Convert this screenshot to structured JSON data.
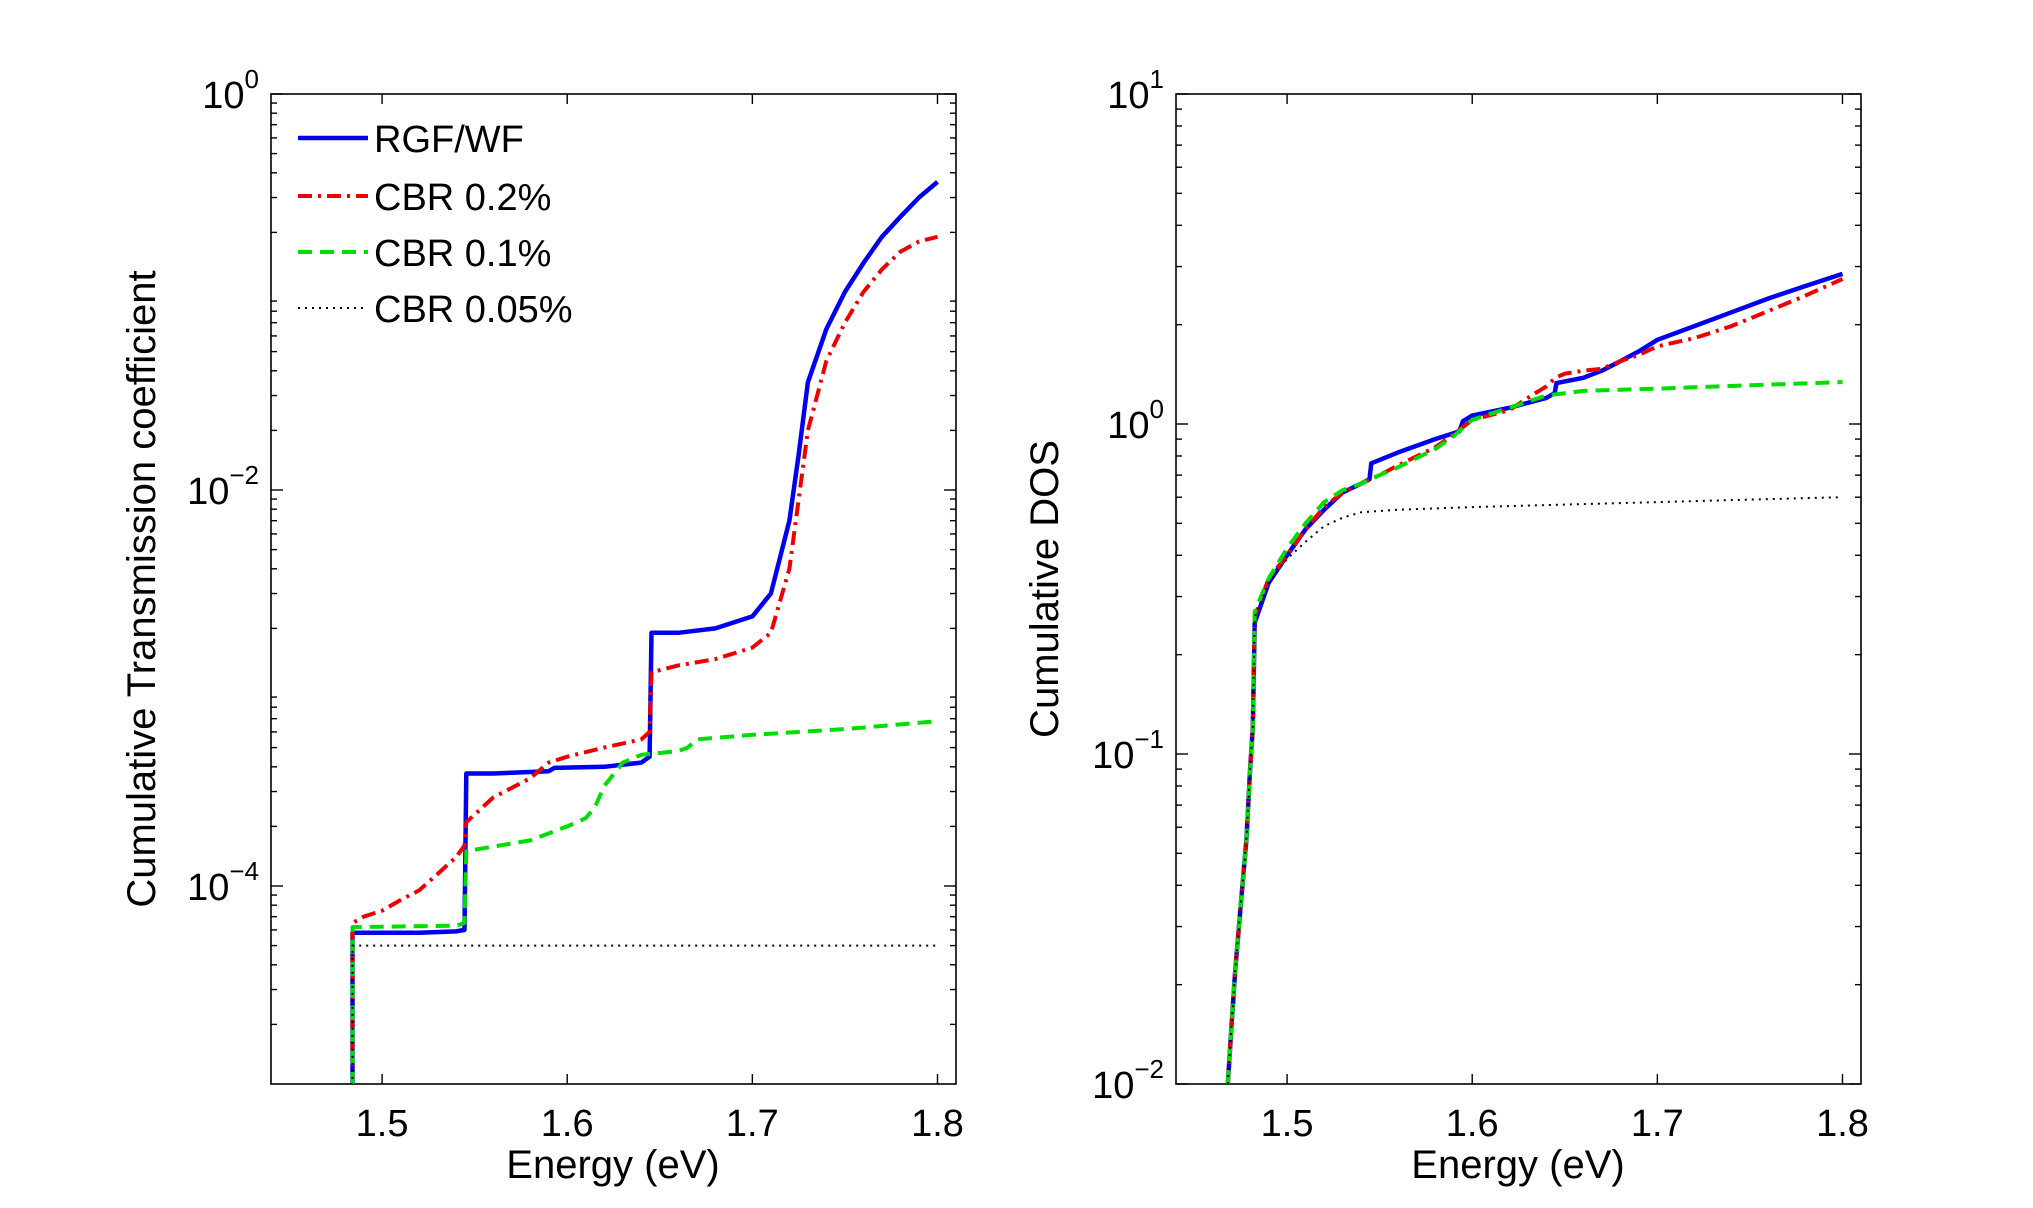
{
  "chart_data": [
    {
      "type": "line",
      "xlabel": "Energy (eV)",
      "ylabel": "Cumulative Transmission coefficient",
      "xlim": [
        1.44,
        1.81
      ],
      "ylim": [
        1e-05,
        1
      ],
      "yscale": "log",
      "xticks": [
        "1.5",
        "1.6",
        "1.7",
        "1.8"
      ],
      "xtick_values": [
        1.5,
        1.6,
        1.7,
        1.8
      ],
      "yticks": [
        {
          "base": "10",
          "exp": "0",
          "value": 1
        },
        {
          "base": "10",
          "exp": "−2",
          "value": 0.01
        },
        {
          "base": "10",
          "exp": "−4",
          "value": 0.0001
        }
      ],
      "legend": {
        "placement": "top-left"
      },
      "series": [
        {
          "name": "RGF/WF",
          "color": "#0000ee",
          "style": "solid",
          "x": [
            1.483,
            1.484,
            1.484,
            1.52,
            1.54,
            1.5445,
            1.5455,
            1.56,
            1.59,
            1.593,
            1.62,
            1.64,
            1.6445,
            1.6455,
            1.66,
            1.68,
            1.7,
            1.71,
            1.72,
            1.725,
            1.73,
            1.74,
            1.75,
            1.76,
            1.77,
            1.78,
            1.79,
            1.8
          ],
          "y": [
            1e-05,
            1e-05,
            5.8e-05,
            5.8e-05,
            5.9e-05,
            6e-05,
            0.00037,
            0.00037,
            0.00038,
            0.000395,
            0.0004,
            0.00042,
            0.00045,
            0.0019,
            0.0019,
            0.002,
            0.0023,
            0.003,
            0.007,
            0.015,
            0.035,
            0.065,
            0.1,
            0.14,
            0.19,
            0.24,
            0.3,
            0.36
          ]
        },
        {
          "name": "CBR 0.2%",
          "color": "#ee0000",
          "style": "dashdot",
          "x": [
            1.483,
            1.484,
            1.484,
            1.49,
            1.5,
            1.51,
            1.52,
            1.53,
            1.54,
            1.5445,
            1.5455,
            1.56,
            1.58,
            1.59,
            1.6,
            1.62,
            1.64,
            1.6445,
            1.6455,
            1.66,
            1.68,
            1.7,
            1.71,
            1.72,
            1.73,
            1.74,
            1.75,
            1.76,
            1.77,
            1.78,
            1.79,
            1.8
          ],
          "y": [
            1e-05,
            1e-05,
            6.5e-05,
            7e-05,
            7.5e-05,
            8.5e-05,
            9.5e-05,
            0.000115,
            0.00014,
            0.00016,
            0.00021,
            0.00028,
            0.00035,
            0.00042,
            0.00045,
            0.0005,
            0.00055,
            0.0006,
            0.0012,
            0.0013,
            0.0014,
            0.0016,
            0.0019,
            0.004,
            0.02,
            0.045,
            0.07,
            0.1,
            0.13,
            0.16,
            0.18,
            0.19
          ]
        },
        {
          "name": "CBR 0.1%",
          "color": "#00dd00",
          "style": "dashed",
          "x": [
            1.483,
            1.484,
            1.484,
            1.54,
            1.5445,
            1.5455,
            1.58,
            1.6,
            1.61,
            1.615,
            1.62,
            1.63,
            1.64,
            1.66,
            1.665,
            1.67,
            1.7,
            1.75,
            1.8
          ],
          "y": [
            1e-05,
            1e-05,
            6.2e-05,
            6.3e-05,
            6.5e-05,
            0.00015,
            0.00017,
            0.0002,
            0.00022,
            0.00025,
            0.00032,
            0.00042,
            0.00046,
            0.00048,
            0.0005,
            0.00055,
            0.00058,
            0.00062,
            0.00068
          ]
        },
        {
          "name": "CBR 0.05%",
          "color": "#000000",
          "style": "dotted",
          "x": [
            1.483,
            1.484,
            1.484,
            1.6,
            1.7,
            1.8
          ],
          "y": [
            1e-05,
            1e-05,
            5e-05,
            5e-05,
            5e-05,
            5e-05
          ]
        }
      ]
    },
    {
      "type": "line",
      "xlabel": "Energy (eV)",
      "ylabel": "Cumulative DOS",
      "xlim": [
        1.44,
        1.81
      ],
      "ylim": [
        0.01,
        10
      ],
      "yscale": "log",
      "xticks": [
        "1.5",
        "1.6",
        "1.7",
        "1.8"
      ],
      "xtick_values": [
        1.5,
        1.6,
        1.7,
        1.8
      ],
      "yticks": [
        {
          "base": "10",
          "exp": "1",
          "value": 10
        },
        {
          "base": "10",
          "exp": "0",
          "value": 1
        },
        {
          "base": "10",
          "exp": "−1",
          "value": 0.1
        },
        {
          "base": "10",
          "exp": "−2",
          "value": 0.01
        }
      ],
      "series": [
        {
          "name": "RGF/WF",
          "color": "#0000ee",
          "style": "solid",
          "x": [
            1.468,
            1.47,
            1.472,
            1.475,
            1.478,
            1.48,
            1.4815,
            1.4825,
            1.49,
            1.5,
            1.51,
            1.52,
            1.53,
            1.54,
            1.5445,
            1.5455,
            1.56,
            1.58,
            1.593,
            1.595,
            1.6,
            1.62,
            1.64,
            1.6445,
            1.6455,
            1.66,
            1.67,
            1.68,
            1.69,
            1.7,
            1.72,
            1.74,
            1.76,
            1.78,
            1.8
          ],
          "y": [
            0.01,
            0.015,
            0.022,
            0.035,
            0.055,
            0.09,
            0.12,
            0.25,
            0.33,
            0.4,
            0.48,
            0.55,
            0.62,
            0.66,
            0.68,
            0.76,
            0.82,
            0.9,
            0.95,
            1.02,
            1.06,
            1.12,
            1.2,
            1.24,
            1.33,
            1.38,
            1.45,
            1.55,
            1.66,
            1.8,
            1.98,
            2.18,
            2.4,
            2.62,
            2.85
          ]
        },
        {
          "name": "CBR 0.2%",
          "color": "#ee0000",
          "style": "dashdot",
          "x": [
            1.468,
            1.47,
            1.472,
            1.475,
            1.478,
            1.48,
            1.4815,
            1.4825,
            1.49,
            1.5,
            1.51,
            1.52,
            1.53,
            1.54,
            1.55,
            1.56,
            1.58,
            1.59,
            1.6,
            1.62,
            1.63,
            1.64,
            1.645,
            1.65,
            1.66,
            1.67,
            1.68,
            1.69,
            1.7,
            1.72,
            1.74,
            1.76,
            1.78,
            1.8
          ],
          "y": [
            0.01,
            0.015,
            0.022,
            0.035,
            0.055,
            0.09,
            0.12,
            0.26,
            0.34,
            0.4,
            0.48,
            0.56,
            0.62,
            0.66,
            0.7,
            0.75,
            0.85,
            0.93,
            1.03,
            1.1,
            1.2,
            1.3,
            1.38,
            1.42,
            1.45,
            1.47,
            1.55,
            1.62,
            1.72,
            1.82,
            1.98,
            2.2,
            2.45,
            2.75
          ]
        },
        {
          "name": "CBR 0.1%",
          "color": "#00dd00",
          "style": "dashed",
          "x": [
            1.468,
            1.47,
            1.472,
            1.475,
            1.478,
            1.48,
            1.4815,
            1.4825,
            1.49,
            1.5,
            1.51,
            1.52,
            1.53,
            1.54,
            1.55,
            1.56,
            1.58,
            1.59,
            1.6,
            1.62,
            1.64,
            1.66,
            1.7,
            1.75,
            1.8
          ],
          "y": [
            0.01,
            0.015,
            0.022,
            0.035,
            0.055,
            0.09,
            0.12,
            0.27,
            0.34,
            0.42,
            0.5,
            0.58,
            0.63,
            0.66,
            0.7,
            0.74,
            0.84,
            0.92,
            1.03,
            1.12,
            1.22,
            1.26,
            1.28,
            1.31,
            1.34
          ]
        },
        {
          "name": "CBR 0.05%",
          "color": "#000000",
          "style": "dotted",
          "x": [
            1.468,
            1.47,
            1.472,
            1.475,
            1.478,
            1.48,
            1.4815,
            1.4825,
            1.49,
            1.5,
            1.51,
            1.52,
            1.53,
            1.54,
            1.56,
            1.6,
            1.65,
            1.7,
            1.75,
            1.8
          ],
          "y": [
            0.01,
            0.015,
            0.022,
            0.035,
            0.055,
            0.09,
            0.12,
            0.26,
            0.33,
            0.39,
            0.44,
            0.49,
            0.52,
            0.54,
            0.55,
            0.56,
            0.57,
            0.58,
            0.59,
            0.6
          ]
        }
      ]
    }
  ]
}
